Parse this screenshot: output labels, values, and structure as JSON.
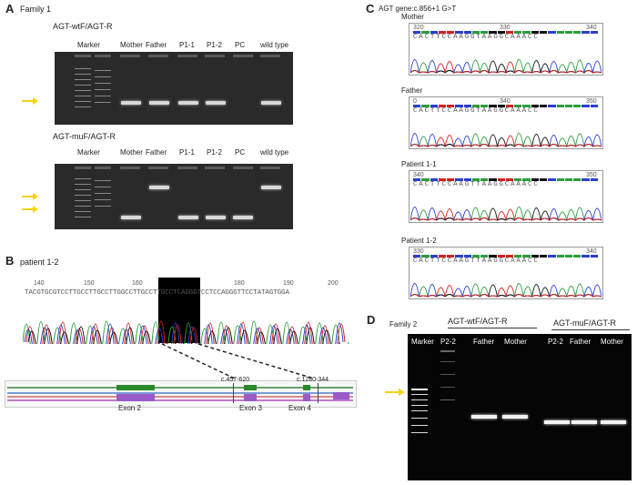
{
  "panelA": {
    "label": "A",
    "family": "Family 1",
    "gel1": {
      "primer": "AGT-wtF/AGT-R",
      "lanes": [
        "Marker",
        "Mother",
        "Father",
        "P1-1",
        "P1-2",
        "PC",
        "wild type"
      ]
    },
    "gel2": {
      "primer": "AGT-muF/AGT-R",
      "lanes": [
        "Marker",
        "Mother",
        "Father",
        "P1-1",
        "P1-2",
        "PC",
        "wild type"
      ]
    }
  },
  "panelB": {
    "label": "B",
    "title": "patient 1-2",
    "positions": [
      "140",
      "150",
      "160",
      "170",
      "180",
      "190",
      "200"
    ],
    "sequence": "TACGTGCGTCCTTGCCTTGCCTTGGCCTTGCCTTGCCTCAGGGTCCTCCAGGGTTCCTATAGTGGA",
    "variants": [
      "c.457-620",
      "c.1280-344"
    ],
    "exons": [
      "Exon 2",
      "Exon 3",
      "Exon 4"
    ]
  },
  "panelC": {
    "label": "C",
    "title": "AGT gene:c.856+1 G>T",
    "traces": [
      {
        "name": "Mother",
        "pos": [
          "320",
          "330",
          "340"
        ],
        "seq": "CACTTCCAAGGTAAGGCAAACC"
      },
      {
        "name": "Father",
        "pos": [
          "0",
          "340",
          "350"
        ],
        "seq": "CACTTCCAAGGTAAGGCAAACC"
      },
      {
        "name": "Patient 1-1",
        "pos": [
          "340",
          "350"
        ],
        "seq": "CACTTCCAAGTTAAGGCAAACC"
      },
      {
        "name": "Patient 1-2",
        "pos": [
          "330",
          "340"
        ],
        "seq": "CACTTCCAAGTTAAGGCAAACC"
      }
    ]
  },
  "panelD": {
    "label": "D",
    "family": "Family 2",
    "primer_wt": "AGT-wtF/AGT-R",
    "primer_mu": "AGT-muF/AGT-R",
    "lanes": [
      "Marker",
      "P2-2",
      "Father",
      "Mother",
      "P2-2",
      "Father",
      "Mother"
    ]
  },
  "colors": {
    "arrow": "#f5d40a",
    "A": "#2a9d3a",
    "C": "#2a3fcc",
    "G": "#111111",
    "T": "#d42020"
  }
}
